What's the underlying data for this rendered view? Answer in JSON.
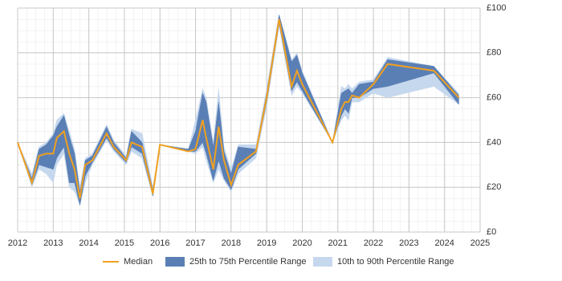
{
  "chart_data": {
    "type": "range-line",
    "x": [
      2012.0,
      2012.4,
      2012.6,
      2012.8,
      2013.0,
      2013.1,
      2013.3,
      2013.45,
      2013.6,
      2013.75,
      2013.9,
      2014.1,
      2014.5,
      2014.7,
      2015.05,
      2015.2,
      2015.5,
      2015.8,
      2016.0,
      2016.8,
      2017.0,
      2017.2,
      2017.3,
      2017.5,
      2017.65,
      2017.8,
      2018.0,
      2018.2,
      2018.7,
      2019.0,
      2019.35,
      2019.7,
      2019.85,
      2020.0,
      2020.85,
      2021.1,
      2021.2,
      2021.3,
      2021.4,
      2021.6,
      2022.0,
      2022.4,
      2023.7,
      2024.4
    ],
    "series": [
      {
        "name": "Median",
        "color": "#f0a020",
        "values": [
          40,
          22,
          34,
          35,
          35,
          42,
          45,
          35,
          28,
          15,
          30,
          32,
          44,
          38,
          32,
          40,
          38,
          17,
          39,
          36,
          37,
          50,
          42,
          28,
          47,
          32,
          21,
          30,
          36,
          60,
          95,
          65,
          72,
          66,
          40,
          55,
          58,
          58,
          61,
          60,
          66,
          75,
          72,
          60
        ]
      },
      {
        "name": "25th to 75th Percentile Range",
        "color": "#5a7fb5",
        "low": [
          40,
          21,
          30,
          29,
          28,
          33,
          38,
          22,
          22,
          12,
          25,
          31,
          42,
          37,
          31,
          38,
          35,
          16,
          39,
          36,
          36,
          40,
          35,
          23,
          32,
          24,
          19,
          28,
          35,
          58,
          93,
          63,
          67,
          63,
          40,
          52,
          55,
          53,
          60,
          60,
          64,
          65,
          71,
          57
        ],
        "high": [
          40,
          24,
          37,
          39,
          43,
          47,
          52,
          43,
          35,
          18,
          32,
          34,
          47,
          40,
          33,
          45,
          40,
          19,
          39,
          37,
          45,
          62,
          58,
          38,
          58,
          36,
          26,
          38,
          37,
          62,
          97,
          76,
          79,
          71,
          40,
          62,
          63,
          64,
          62,
          66,
          67,
          77,
          74,
          61
        ]
      },
      {
        "name": "10th to 90th Percentile Range",
        "color": "#c6d8ee",
        "low": [
          40,
          20,
          28,
          26,
          22,
          30,
          35,
          20,
          18,
          12,
          22,
          30,
          41,
          36,
          30,
          36,
          33,
          16,
          39,
          36,
          35,
          38,
          32,
          22,
          28,
          23,
          18,
          26,
          33,
          56,
          92,
          61,
          65,
          62,
          40,
          50,
          52,
          50,
          58,
          58,
          62,
          60,
          65,
          57
        ],
        "high": [
          40,
          26,
          38,
          40,
          44,
          50,
          53,
          45,
          37,
          20,
          33,
          35,
          48,
          41,
          34,
          46,
          44,
          20,
          39,
          37,
          50,
          64,
          60,
          40,
          64,
          38,
          28,
          39,
          39,
          64,
          97,
          77,
          80,
          72,
          40,
          65,
          64,
          66,
          64,
          67,
          68,
          78,
          74,
          62
        ]
      }
    ],
    "xlim": [
      2012,
      2025
    ],
    "xticks": [
      2012,
      2013,
      2014,
      2015,
      2016,
      2017,
      2018,
      2019,
      2020,
      2021,
      2022,
      2023,
      2024,
      2025
    ],
    "ylim": [
      0,
      100
    ],
    "yticks": [
      {
        "value": 0,
        "label": "£0"
      },
      {
        "value": 20,
        "label": "£20"
      },
      {
        "value": 40,
        "label": "£40"
      },
      {
        "value": 60,
        "label": "£60"
      },
      {
        "value": 80,
        "label": "£80"
      },
      {
        "value": 100,
        "label": "£100"
      }
    ],
    "grid": true,
    "legend": "bottom"
  }
}
